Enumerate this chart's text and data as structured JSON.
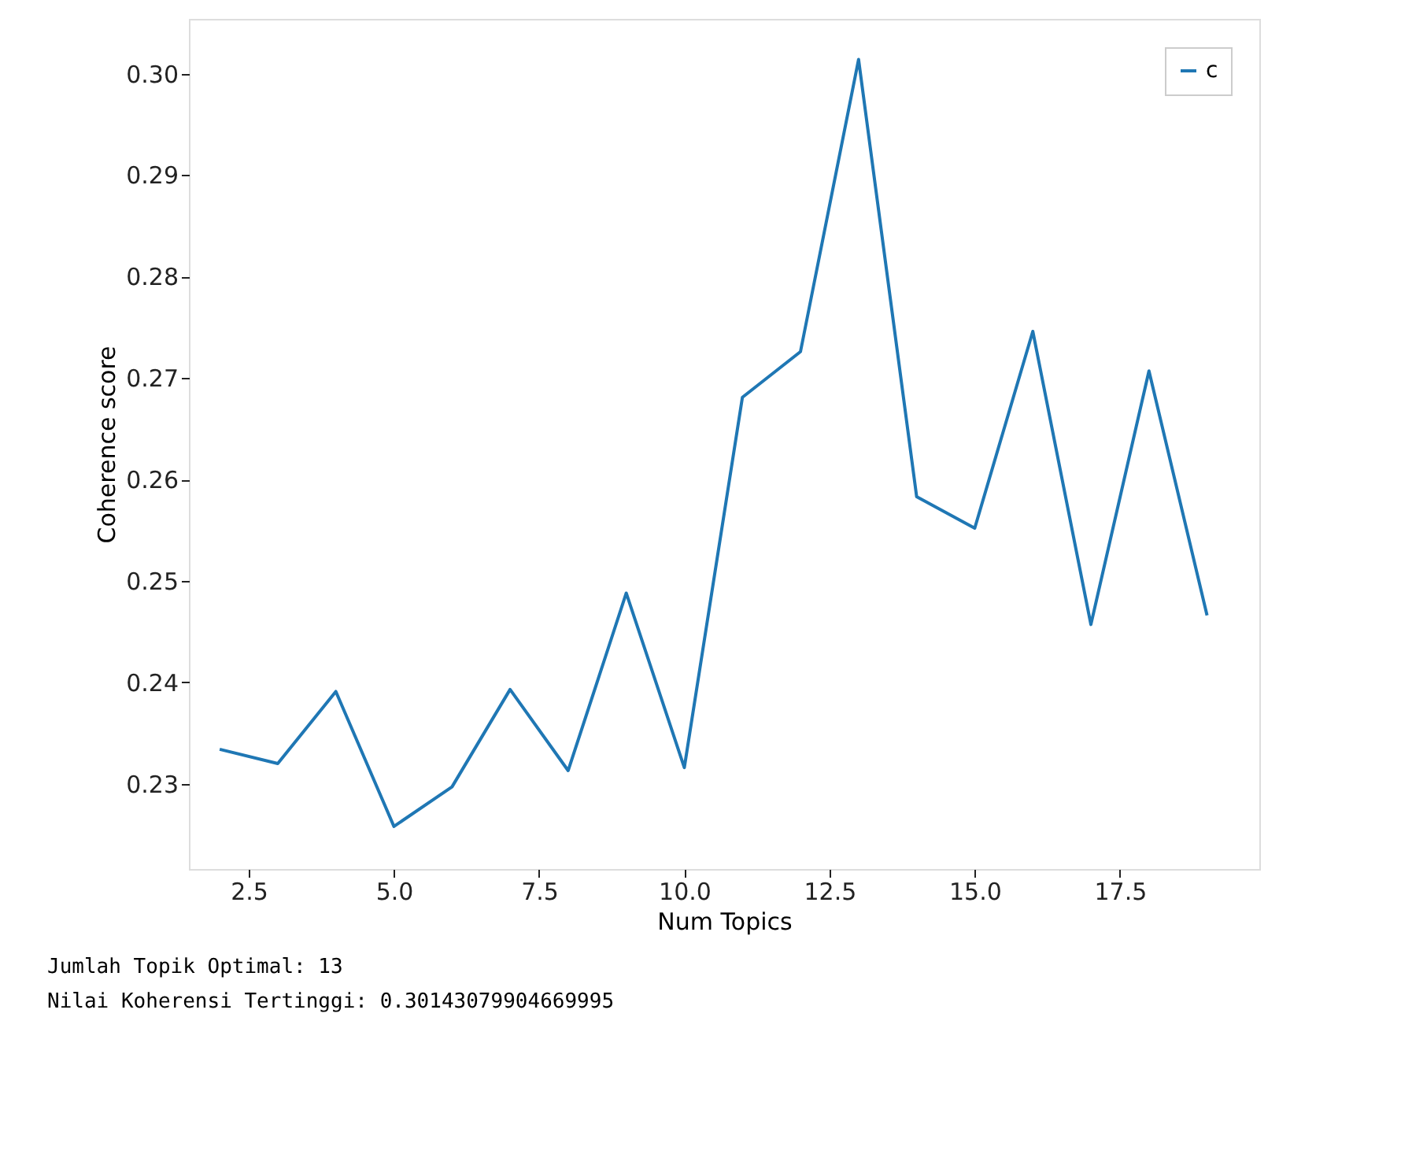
{
  "chart_data": {
    "type": "line",
    "xlabel": "Num Topics",
    "ylabel": "Coherence score",
    "x": [
      2,
      3,
      4,
      5,
      6,
      7,
      8,
      9,
      10,
      11,
      12,
      13,
      14,
      15,
      16,
      17,
      18,
      19
    ],
    "series": [
      {
        "name": "c",
        "color": "#1f77b4",
        "values": [
          0.2334,
          0.232,
          0.2391,
          0.2258,
          0.2297,
          0.2393,
          0.2313,
          0.2488,
          0.2316,
          0.2681,
          0.2726,
          0.3014,
          0.2583,
          0.2552,
          0.2746,
          0.2457,
          0.2707,
          0.2466
        ]
      }
    ],
    "xlim": [
      1.47,
      19.9
    ],
    "xticks": [
      {
        "value": 2.5,
        "label": "2.5"
      },
      {
        "value": 5,
        "label": "5.0"
      },
      {
        "value": 7.5,
        "label": "7.5"
      },
      {
        "value": 10,
        "label": "10.0"
      },
      {
        "value": 12.5,
        "label": "12.5"
      },
      {
        "value": 15,
        "label": "15.0"
      },
      {
        "value": 17.5,
        "label": "17.5"
      }
    ],
    "ylim": [
      0.2216,
      0.3054
    ],
    "yticks": [
      {
        "value": 0.23,
        "label": "0.23"
      },
      {
        "value": 0.24,
        "label": "0.24"
      },
      {
        "value": 0.25,
        "label": "0.25"
      },
      {
        "value": 0.26,
        "label": "0.26"
      },
      {
        "value": 0.27,
        "label": "0.27"
      },
      {
        "value": 0.28,
        "label": "0.28"
      },
      {
        "value": 0.29,
        "label": "0.29"
      },
      {
        "value": 0.3,
        "label": "0.30"
      }
    ],
    "grid": false,
    "legend": "top right",
    "marker": "none",
    "line_style": "solid",
    "annotations": [
      "Jumlah Topik Optimal: 13",
      "Nilai Koherensi Tertinggi: 0.30143079904669995"
    ]
  }
}
